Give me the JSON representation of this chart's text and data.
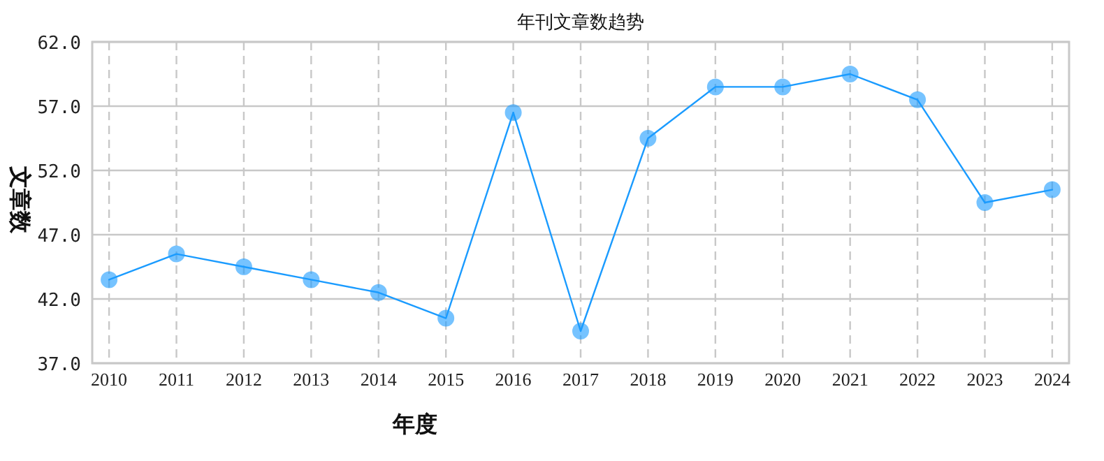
{
  "chart_data": {
    "type": "line",
    "title": "年刊文章数趋势",
    "xlabel": "年度",
    "ylabel": "文章数",
    "categories": [
      "2010",
      "2011",
      "2012",
      "2013",
      "2014",
      "2015",
      "2016",
      "2017",
      "2018",
      "2019",
      "2020",
      "2021",
      "2022",
      "2023",
      "2024"
    ],
    "series": [
      {
        "color": "#1a9bff",
        "values": [
          43.5,
          45.5,
          44.5,
          43.5,
          42.5,
          40.5,
          56.5,
          39.5,
          54.5,
          58.5,
          58.5,
          59.5,
          57.5,
          49.5,
          50.5
        ]
      }
    ],
    "ylim": [
      37,
      62
    ],
    "yticks": [
      {
        "value": 37,
        "label": "37.0"
      },
      {
        "value": 42,
        "label": "42.0"
      },
      {
        "value": 47,
        "label": "47.0"
      },
      {
        "value": 52,
        "label": "52.0"
      },
      {
        "value": 57,
        "label": "57.0"
      },
      {
        "value": 62,
        "label": "62.0"
      }
    ],
    "grid": true,
    "marker": "circle",
    "line_style": "solid"
  }
}
